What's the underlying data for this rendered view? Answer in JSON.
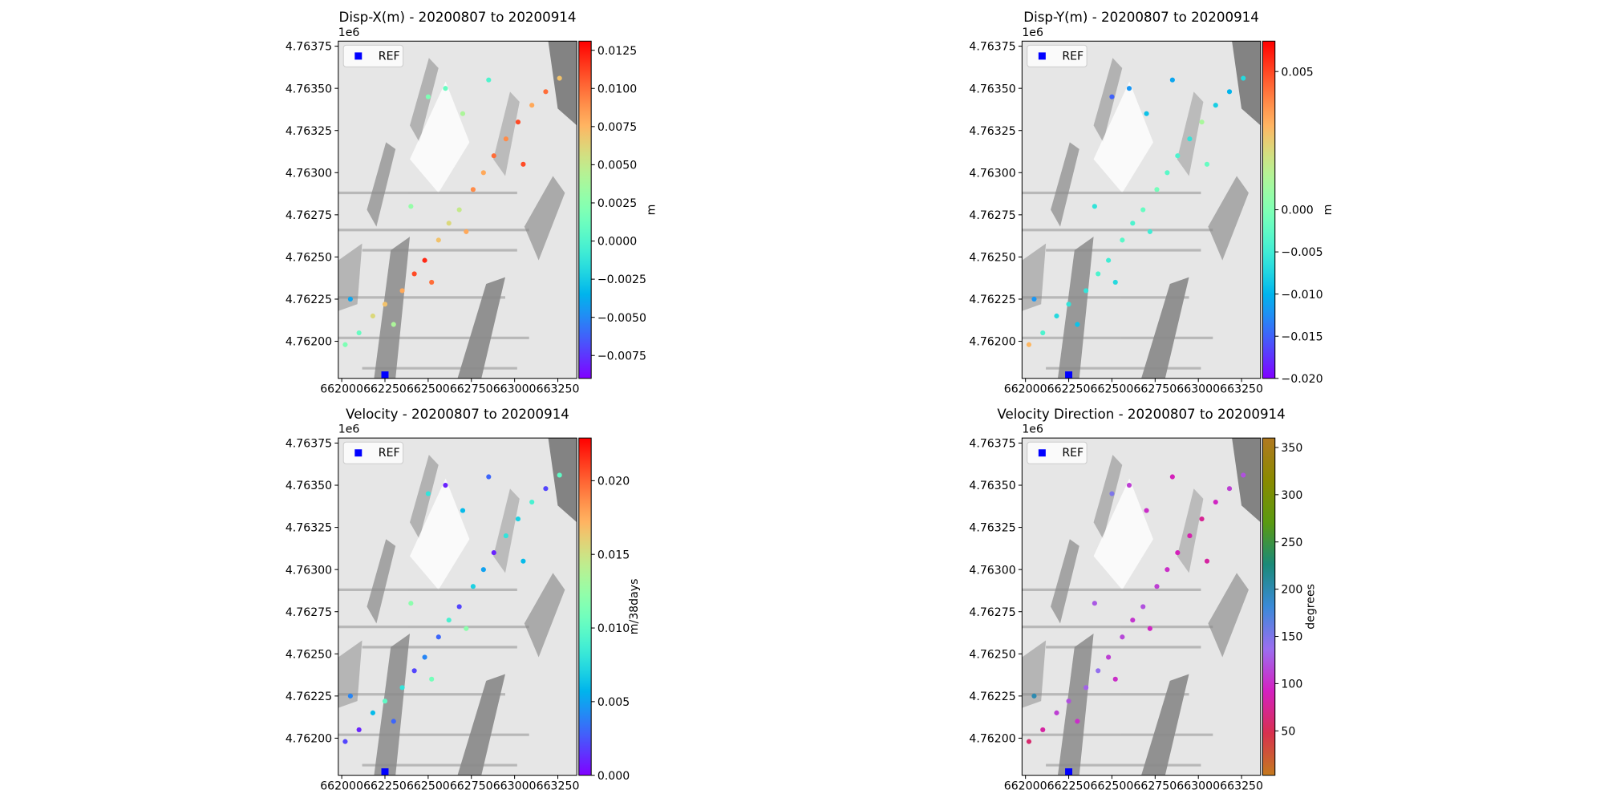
{
  "chart_data": [
    {
      "type": "scatter",
      "title": "Disp-X(m) - 20200807 to 20200914",
      "offset_text": "1e6",
      "x": [
        662020,
        662100,
        662180,
        662250,
        662300,
        662350,
        662420,
        662480,
        662520,
        662560,
        662620,
        662680,
        662720,
        662760,
        662820,
        662880,
        662950,
        663020,
        663100,
        663180,
        663260,
        662600,
        662700,
        662850,
        662500,
        662400,
        663050,
        662050
      ],
      "y": [
        4761980,
        4762050,
        4762150,
        4762220,
        4762100,
        4762300,
        4762400,
        4762480,
        4762350,
        4762600,
        4762700,
        4762780,
        4762650,
        4762900,
        4763000,
        4763100,
        4763200,
        4763300,
        4763400,
        4763480,
        4763560,
        4763500,
        4763350,
        4763550,
        4763450,
        4762800,
        4763050,
        4762250
      ],
      "values": [
        0.002,
        0.001,
        0.006,
        0.007,
        0.004,
        0.008,
        0.011,
        0.012,
        0.01,
        0.007,
        0.006,
        0.005,
        0.008,
        0.009,
        0.008,
        0.01,
        0.009,
        0.011,
        0.008,
        0.01,
        0.007,
        0.001,
        0.004,
        0.0,
        0.002,
        0.003,
        0.011,
        -0.004
      ],
      "xlim": [
        661980,
        663360
      ],
      "ylim": [
        4761780,
        4763780
      ],
      "xticks": [
        662000,
        662250,
        662500,
        662750,
        663000,
        663250
      ],
      "yticks": [
        {
          "value": 4762000,
          "label": "4.76200"
        },
        {
          "value": 4762250,
          "label": "4.76225"
        },
        {
          "value": 4762500,
          "label": "4.76250"
        },
        {
          "value": 4762750,
          "label": "4.76275"
        },
        {
          "value": 4763000,
          "label": "4.76300"
        },
        {
          "value": 4763250,
          "label": "4.76325"
        },
        {
          "value": 4763500,
          "label": "4.76350"
        },
        {
          "value": 4763750,
          "label": "4.76375"
        }
      ],
      "colorbar": {
        "label": "m",
        "colormap": "rainbow",
        "lim": [
          -0.009,
          0.0131
        ],
        "ticks": [
          {
            "value": -0.0075,
            "label": "−0.0075"
          },
          {
            "value": -0.005,
            "label": "−0.0050"
          },
          {
            "value": -0.0025,
            "label": "−0.0025"
          },
          {
            "value": 0,
            "label": "0.0000"
          },
          {
            "value": 0.0025,
            "label": "0.0025"
          },
          {
            "value": 0.005,
            "label": "0.0050"
          },
          {
            "value": 0.0075,
            "label": "0.0075"
          },
          {
            "value": 0.01,
            "label": "0.0100"
          },
          {
            "value": 0.0125,
            "label": "0.0125"
          }
        ]
      },
      "ref": {
        "name": "REF",
        "x": 662250,
        "y": 4761800,
        "color": "#0000ff"
      },
      "legend": "upper left"
    },
    {
      "type": "scatter",
      "title": "Disp-Y(m) - 20200807 to 20200914",
      "offset_text": "1e6",
      "x": [
        662020,
        662100,
        662180,
        662250,
        662300,
        662350,
        662420,
        662480,
        662520,
        662560,
        662620,
        662680,
        662720,
        662760,
        662820,
        662880,
        662950,
        663020,
        663100,
        663180,
        663260,
        662600,
        662700,
        662850,
        662500,
        662400,
        663050,
        662050
      ],
      "y": [
        4761980,
        4762050,
        4762150,
        4762220,
        4762100,
        4762300,
        4762400,
        4762480,
        4762350,
        4762600,
        4762700,
        4762780,
        4762650,
        4762900,
        4763000,
        4763100,
        4763200,
        4763300,
        4763400,
        4763480,
        4763560,
        4763500,
        4763350,
        4763550,
        4763450,
        4762800,
        4763050,
        4762250
      ],
      "values": [
        0.003,
        -0.004,
        -0.007,
        -0.006,
        -0.009,
        -0.006,
        -0.004,
        -0.005,
        -0.007,
        -0.003,
        -0.004,
        -0.002,
        -0.005,
        -0.001,
        -0.003,
        -0.004,
        -0.006,
        0.001,
        -0.008,
        -0.01,
        -0.007,
        -0.012,
        -0.009,
        -0.011,
        -0.015,
        -0.006,
        -0.002,
        -0.012
      ],
      "xlim": [
        661980,
        663360
      ],
      "ylim": [
        4761780,
        4763780
      ],
      "xticks": [
        662000,
        662250,
        662500,
        662750,
        663000,
        663250
      ],
      "yticks": [
        {
          "value": 4762000,
          "label": "4.76200"
        },
        {
          "value": 4762250,
          "label": "4.76225"
        },
        {
          "value": 4762500,
          "label": "4.76250"
        },
        {
          "value": 4762750,
          "label": "4.76275"
        },
        {
          "value": 4763000,
          "label": "4.76300"
        },
        {
          "value": 4763250,
          "label": "4.76325"
        },
        {
          "value": 4763500,
          "label": "4.76350"
        },
        {
          "value": 4763750,
          "label": "4.76375"
        }
      ],
      "colorbar": {
        "label": "m",
        "colormap": "rainbow",
        "lim": [
          -0.02,
          0.0061
        ],
        "vcenter": 0,
        "ticks": [
          {
            "value": -0.02,
            "label": "−0.020"
          },
          {
            "value": -0.015,
            "label": "−0.015"
          },
          {
            "value": -0.01,
            "label": "−0.010"
          },
          {
            "value": -0.005,
            "label": "−0.005"
          },
          {
            "value": 0,
            "label": "0.000"
          },
          0.005
        ]
      },
      "ref": {
        "name": "REF",
        "x": 662250,
        "y": 4761800,
        "color": "#0000ff"
      },
      "legend": "upper left"
    },
    {
      "type": "scatter",
      "title": "Velocity - 20200807 to 20200914",
      "offset_text": "1e6",
      "x": [
        662020,
        662100,
        662180,
        662250,
        662300,
        662350,
        662420,
        662480,
        662520,
        662560,
        662620,
        662680,
        662720,
        662760,
        662820,
        662880,
        662950,
        663020,
        663100,
        663180,
        663260,
        662600,
        662700,
        662850,
        662500,
        662400,
        663050,
        662050
      ],
      "y": [
        4761980,
        4762050,
        4762150,
        4762220,
        4762100,
        4762300,
        4762400,
        4762480,
        4762350,
        4762600,
        4762700,
        4762780,
        4762650,
        4762900,
        4763000,
        4763100,
        4763200,
        4763300,
        4763400,
        4763480,
        4763560,
        4763500,
        4763350,
        4763550,
        4763450,
        4762800,
        4763050,
        4762250
      ],
      "values": [
        0.002,
        0.001,
        0.006,
        0.01,
        0.003,
        0.008,
        0.002,
        0.004,
        0.011,
        0.003,
        0.009,
        0.002,
        0.012,
        0.007,
        0.005,
        0.001,
        0.008,
        0.007,
        0.009,
        0.002,
        0.01,
        0.001,
        0.006,
        0.003,
        0.008,
        0.012,
        0.006,
        0.004
      ],
      "xlim": [
        661980,
        663360
      ],
      "ylim": [
        4761780,
        4763780
      ],
      "xticks": [
        662000,
        662250,
        662500,
        662750,
        663000,
        663250
      ],
      "yticks": [
        {
          "value": 4762000,
          "label": "4.76200"
        },
        {
          "value": 4762250,
          "label": "4.76225"
        },
        {
          "value": 4762500,
          "label": "4.76250"
        },
        {
          "value": 4762750,
          "label": "4.76275"
        },
        {
          "value": 4763000,
          "label": "4.76300"
        },
        {
          "value": 4763250,
          "label": "4.76325"
        },
        {
          "value": 4763500,
          "label": "4.76350"
        },
        {
          "value": 4763750,
          "label": "4.76375"
        }
      ],
      "colorbar": {
        "label": "m/38days",
        "colormap": "rainbow",
        "lim": [
          0,
          0.0229
        ],
        "ticks": [
          {
            "value": 0,
            "label": "0.000"
          },
          0.005,
          {
            "value": 0.01,
            "label": "0.010"
          },
          0.015,
          {
            "value": 0.02,
            "label": "0.020"
          }
        ]
      },
      "ref": {
        "name": "REF",
        "x": 662250,
        "y": 4761800,
        "color": "#0000ff"
      },
      "legend": "upper left"
    },
    {
      "type": "scatter",
      "title": "Velocity Direction - 20200807 to 20200914",
      "offset_text": "1e6",
      "x": [
        662020,
        662100,
        662180,
        662250,
        662300,
        662350,
        662420,
        662480,
        662520,
        662560,
        662620,
        662680,
        662720,
        662760,
        662820,
        662880,
        662950,
        663020,
        663100,
        663180,
        663260,
        662600,
        662700,
        662850,
        662500,
        662400,
        663050,
        662050
      ],
      "y": [
        4761980,
        4762050,
        4762150,
        4762220,
        4762100,
        4762300,
        4762400,
        4762480,
        4762350,
        4762600,
        4762700,
        4762780,
        4762650,
        4762900,
        4763000,
        4763100,
        4763200,
        4763300,
        4763400,
        4763480,
        4763560,
        4763500,
        4763350,
        4763550,
        4763450,
        4762800,
        4763050,
        4762250
      ],
      "values": [
        60,
        80,
        110,
        120,
        100,
        130,
        140,
        110,
        100,
        115,
        105,
        120,
        95,
        110,
        100,
        90,
        85,
        75,
        95,
        110,
        120,
        110,
        100,
        90,
        150,
        125,
        80,
        200
      ],
      "xlim": [
        661980,
        663360
      ],
      "ylim": [
        4761780,
        4763780
      ],
      "xticks": [
        662000,
        662250,
        662500,
        662750,
        663000,
        663250
      ],
      "yticks": [
        {
          "value": 4762000,
          "label": "4.76200"
        },
        {
          "value": 4762250,
          "label": "4.76225"
        },
        {
          "value": 4762500,
          "label": "4.76250"
        },
        {
          "value": 4762750,
          "label": "4.76275"
        },
        {
          "value": 4763000,
          "label": "4.76300"
        },
        {
          "value": 4763250,
          "label": "4.76325"
        },
        {
          "value": 4763500,
          "label": "4.76350"
        },
        {
          "value": 4763750,
          "label": "4.76375"
        }
      ],
      "colorbar": {
        "label": "degrees",
        "colormap": [
          "#c47a1e",
          "#d8304e",
          "#d420c0",
          "#9a6ef0",
          "#3a8ad8",
          "#1a8a78",
          "#5a9a10",
          "#8a8a00",
          "#b07820"
        ],
        "lim": [
          3,
          360
        ],
        "ticks": [
          50,
          100,
          150,
          200,
          250,
          300,
          350
        ]
      },
      "ref": {
        "name": "REF",
        "x": 662250,
        "y": 4761800,
        "color": "#0000ff"
      },
      "legend": "upper left"
    }
  ]
}
